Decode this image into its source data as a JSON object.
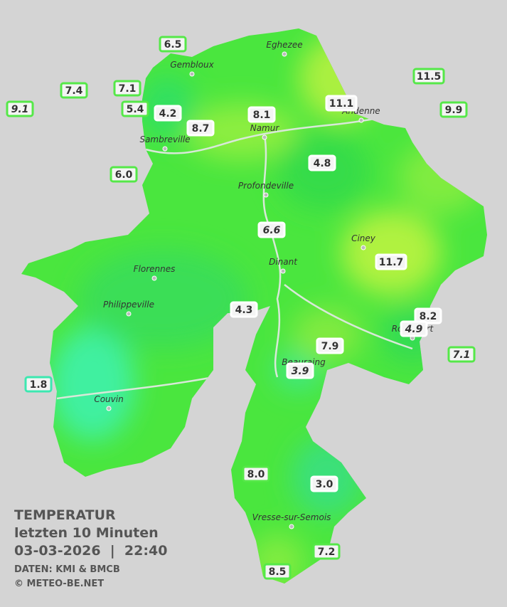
{
  "header": {
    "title": "TEMPERATUR",
    "subtitle": "letzten 10 Minuten",
    "datetime": "03-03-2026  |  22:40",
    "source": "DATEN: KMI & BMCB",
    "copyright": "© METEO-BE.NET"
  },
  "towns": [
    "Eghezee",
    "Gembloux",
    "Andenne",
    "Namur",
    "Sambreville",
    "Profondeville",
    "Ciney",
    "Dinant",
    "Florennes",
    "Philippeville",
    "Beauraing",
    "Rochefort",
    "Couvin",
    "Vresse-sur-Semois"
  ],
  "stations": [
    {
      "label": "6.5",
      "italic": false,
      "border": "#55e848"
    },
    {
      "label": "7.4",
      "italic": false,
      "border": "#55e848"
    },
    {
      "label": "7.1",
      "italic": false,
      "border": "#55e848"
    },
    {
      "label": "9.1",
      "italic": true,
      "border": "#55e848"
    },
    {
      "label": "5.4",
      "italic": false,
      "border": "#55e848"
    },
    {
      "label": "4.2",
      "italic": false,
      "border": "#ffffff"
    },
    {
      "label": "8.7",
      "italic": false,
      "border": "#ffffff"
    },
    {
      "label": "8.1",
      "italic": false,
      "border": "#ffffff"
    },
    {
      "label": "11.1",
      "italic": false,
      "border": "#ffffff"
    },
    {
      "label": "11.5",
      "italic": false,
      "border": "#55e848"
    },
    {
      "label": "9.9",
      "italic": false,
      "border": "#55e848"
    },
    {
      "label": "6.0",
      "italic": false,
      "border": "#55e848"
    },
    {
      "label": "4.8",
      "italic": false,
      "border": "#ffffff"
    },
    {
      "label": "6.6",
      "italic": true,
      "border": "#ffffff"
    },
    {
      "label": "11.7",
      "italic": false,
      "border": "#ffffff"
    },
    {
      "label": "4.3",
      "italic": false,
      "border": "#ffffff"
    },
    {
      "label": "8.2",
      "italic": false,
      "border": "#ffffff"
    },
    {
      "label": "4.9",
      "italic": true,
      "border": "#ffffff"
    },
    {
      "label": "7.9",
      "italic": false,
      "border": "#ffffff"
    },
    {
      "label": "7.1",
      "italic": true,
      "border": "#55e848"
    },
    {
      "label": "3.9",
      "italic": true,
      "border": "#ffffff"
    },
    {
      "label": "1.8",
      "italic": false,
      "border": "#3ce8b0"
    },
    {
      "label": "8.0",
      "italic": false,
      "border": "#55e848"
    },
    {
      "label": "3.0",
      "italic": false,
      "border": "#ffffff"
    },
    {
      "label": "7.2",
      "italic": false,
      "border": "#55e848"
    },
    {
      "label": "8.5",
      "italic": false,
      "border": "#55e848"
    }
  ]
}
